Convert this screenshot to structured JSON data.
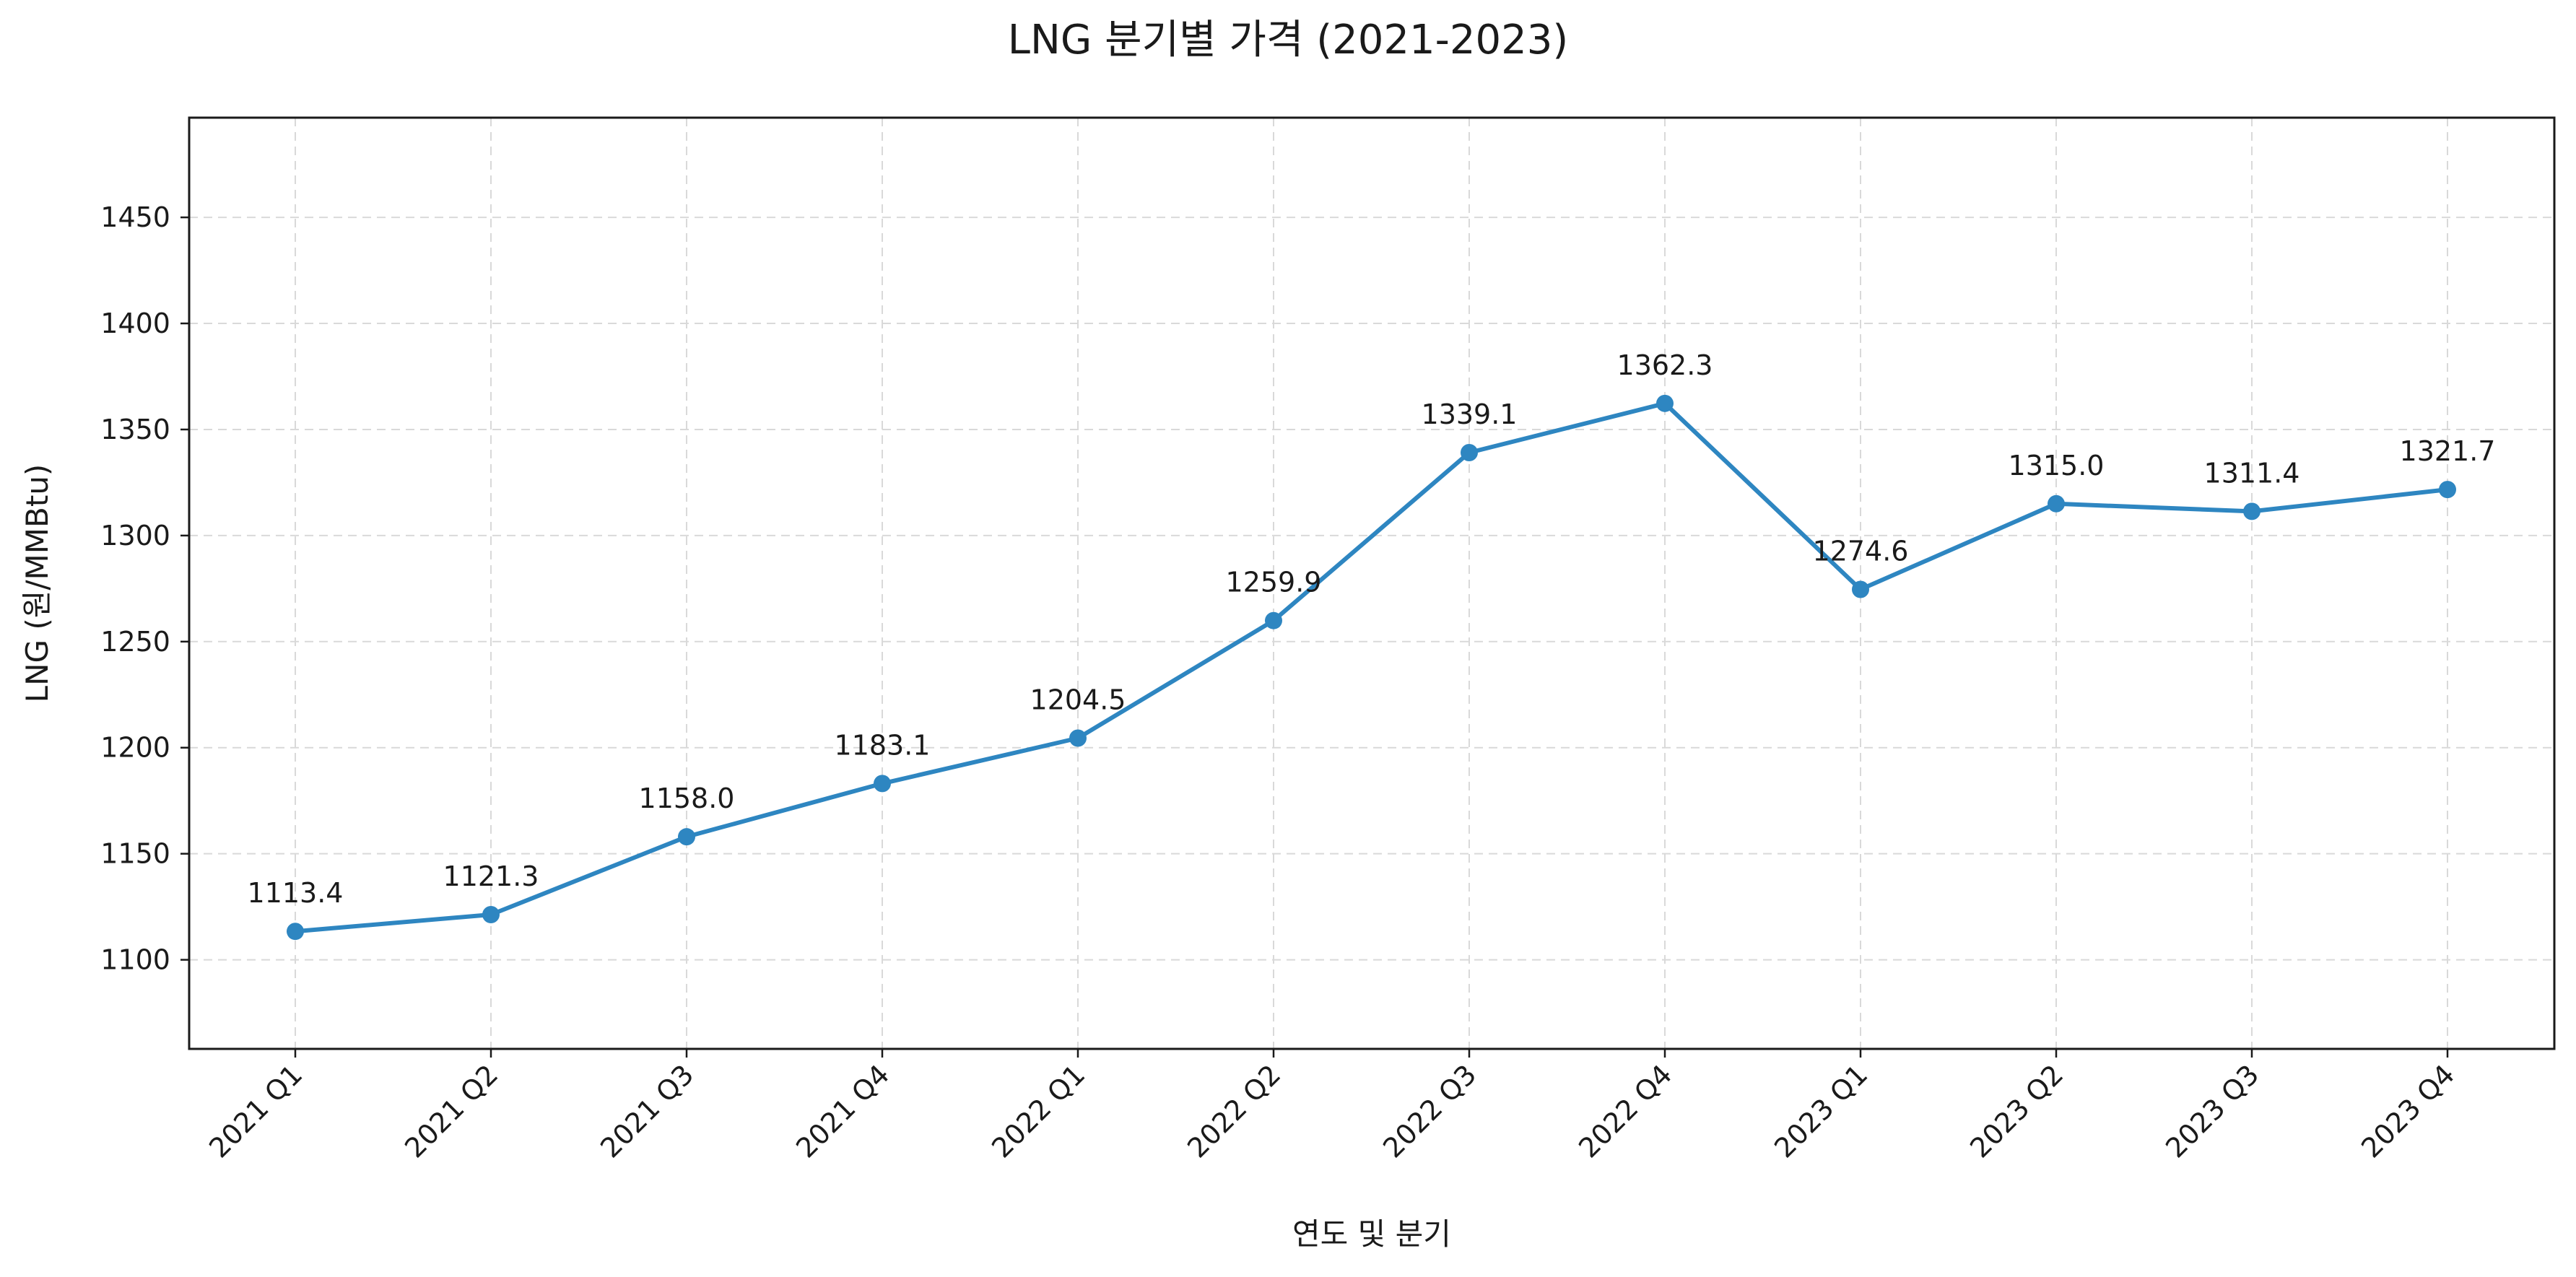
{
  "chart_data": {
    "type": "line",
    "title": "LNG 분기별 가격 (2021-2023)",
    "xlabel": "연도 및 분기",
    "ylabel": "LNG (원/MMBtu)",
    "categories": [
      "2021 Q1",
      "2021 Q2",
      "2021 Q3",
      "2021 Q4",
      "2022 Q1",
      "2022 Q2",
      "2022 Q3",
      "2022 Q4",
      "2023 Q1",
      "2023 Q2",
      "2023 Q3",
      "2023 Q4"
    ],
    "series": [
      {
        "values": [
          1113.4,
          1121.3,
          1158.0,
          1183.1,
          1204.5,
          1259.9,
          1339.1,
          1362.3,
          1274.6,
          1315.0,
          1311.4,
          1321.7
        ],
        "labels": [
          "1113.4",
          "1121.3",
          "1158.0",
          "1183.1",
          "1204.5",
          "1259.9",
          "1339.1",
          "1362.3",
          "1274.6",
          "1315.0",
          "1311.4",
          "1321.7"
        ],
        "color": "#2e86c1"
      }
    ],
    "ylim": [
      1058,
      1497
    ],
    "yticks": [
      1100,
      1150,
      1200,
      1250,
      1300,
      1350,
      1400,
      1450
    ],
    "ytick_labels": [
      "1100",
      "1150",
      "1200",
      "1250",
      "1300",
      "1350",
      "1400",
      "1450"
    ],
    "grid": true,
    "legend": "none",
    "x_tick_rotation_deg": 45
  }
}
